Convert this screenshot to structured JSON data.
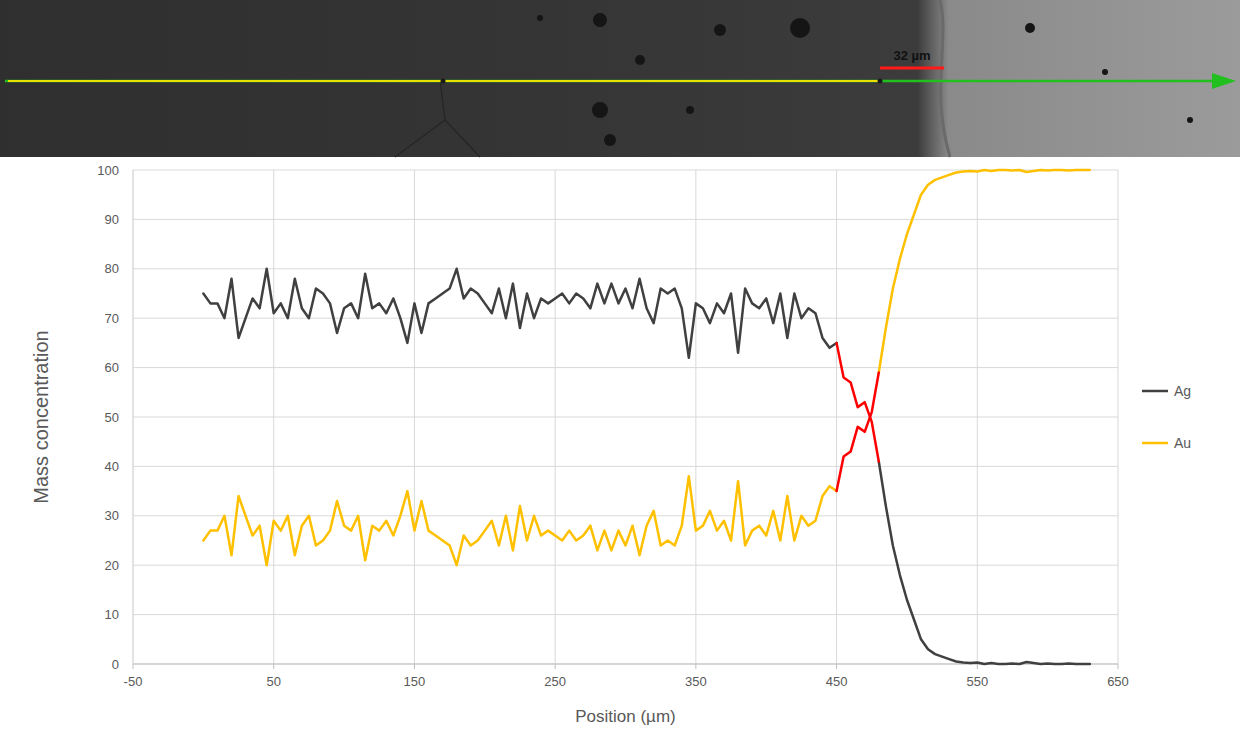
{
  "chart_data": {
    "type": "line",
    "x_label": "Position (µm)",
    "y_label": "Mass concentration",
    "annotations": [
      "32 µm"
    ],
    "xlim": [
      -50,
      650
    ],
    "xticks": [
      -50,
      50,
      150,
      250,
      350,
      450,
      550,
      650
    ],
    "ylim": [
      0,
      100
    ],
    "yticks": [
      0,
      10,
      20,
      30,
      40,
      50,
      60,
      70,
      80,
      90,
      100
    ],
    "grid": true,
    "legend": "right",
    "x": [
      0,
      5,
      10,
      15,
      20,
      25,
      30,
      35,
      40,
      45,
      50,
      55,
      60,
      65,
      70,
      75,
      80,
      85,
      90,
      95,
      100,
      105,
      110,
      115,
      120,
      125,
      130,
      135,
      140,
      145,
      150,
      155,
      160,
      165,
      170,
      175,
      180,
      185,
      190,
      195,
      200,
      205,
      210,
      215,
      220,
      225,
      230,
      235,
      240,
      245,
      250,
      255,
      260,
      265,
      270,
      275,
      280,
      285,
      290,
      295,
      300,
      305,
      310,
      315,
      320,
      325,
      330,
      335,
      340,
      345,
      350,
      355,
      360,
      365,
      370,
      375,
      380,
      385,
      390,
      395,
      400,
      405,
      410,
      415,
      420,
      425,
      430,
      435,
      440,
      445,
      450,
      455,
      460,
      465,
      470,
      475,
      480,
      485,
      490,
      495,
      500,
      505,
      510,
      515,
      520,
      525,
      530,
      535,
      540,
      545,
      550,
      555,
      560,
      565,
      570,
      575,
      580,
      585,
      590,
      595,
      600,
      605,
      610,
      615,
      620,
      625,
      630
    ],
    "series": [
      {
        "name": "Ag",
        "color": "#404040",
        "values": [
          75,
          73,
          73,
          70,
          78,
          66,
          70,
          74,
          72,
          80,
          71,
          73,
          70,
          78,
          72,
          70,
          76,
          75,
          73,
          67,
          72,
          73,
          70,
          79,
          72,
          73,
          71,
          74,
          70,
          65,
          73,
          67,
          73,
          74,
          75,
          76,
          80,
          74,
          76,
          75,
          73,
          71,
          76,
          70,
          77,
          68,
          75,
          70,
          74,
          73,
          74,
          75,
          73,
          75,
          74,
          72,
          77,
          73,
          77,
          73,
          76,
          72,
          78,
          72,
          69,
          76,
          75,
          76,
          72,
          62,
          73,
          72,
          69,
          73,
          71,
          75,
          63,
          76,
          73,
          72,
          74,
          69,
          75,
          66,
          75,
          70,
          72,
          71,
          66,
          64,
          65,
          null,
          null,
          null,
          null,
          null,
          41,
          32,
          24,
          18,
          13,
          9,
          5,
          3,
          2,
          1.5,
          1,
          0.5,
          0.3,
          0.2,
          0.3,
          0,
          0.2,
          0,
          0,
          0.1,
          0,
          0.4,
          0.2,
          0,
          0.1,
          0,
          0,
          0.1,
          0,
          0,
          0
        ]
      },
      {
        "name": "Au",
        "color": "#ffc000",
        "values": [
          25,
          27,
          27,
          30,
          22,
          34,
          30,
          26,
          28,
          20,
          29,
          27,
          30,
          22,
          28,
          30,
          24,
          25,
          27,
          33,
          28,
          27,
          30,
          21,
          28,
          27,
          29,
          26,
          30,
          35,
          27,
          33,
          27,
          26,
          25,
          24,
          20,
          26,
          24,
          25,
          27,
          29,
          24,
          30,
          23,
          32,
          25,
          30,
          26,
          27,
          26,
          25,
          27,
          25,
          26,
          28,
          23,
          27,
          23,
          27,
          24,
          28,
          22,
          28,
          31,
          24,
          25,
          24,
          28,
          38,
          27,
          28,
          31,
          27,
          29,
          25,
          37,
          24,
          27,
          28,
          26,
          31,
          25,
          34,
          25,
          30,
          28,
          29,
          34,
          36,
          35,
          null,
          null,
          null,
          null,
          null,
          59,
          68,
          76,
          82,
          87,
          91,
          95,
          97,
          98,
          98.5,
          99,
          99.5,
          99.7,
          99.8,
          99.7,
          100,
          99.8,
          100,
          100,
          99.9,
          100,
          99.6,
          99.8,
          100,
          99.9,
          100,
          100,
          99.9,
          100,
          100,
          100
        ]
      },
      {
        "color": "#ff0000",
        "values": [
          null,
          null,
          null,
          null,
          null,
          null,
          null,
          null,
          null,
          null,
          null,
          null,
          null,
          null,
          null,
          null,
          null,
          null,
          null,
          null,
          null,
          null,
          null,
          null,
          null,
          null,
          null,
          null,
          null,
          null,
          null,
          null,
          null,
          null,
          null,
          null,
          null,
          null,
          null,
          null,
          null,
          null,
          null,
          null,
          null,
          null,
          null,
          null,
          null,
          null,
          null,
          null,
          null,
          null,
          null,
          null,
          null,
          null,
          null,
          null,
          null,
          null,
          null,
          null,
          null,
          null,
          null,
          null,
          null,
          null,
          null,
          null,
          null,
          null,
          null,
          null,
          null,
          null,
          null,
          null,
          null,
          null,
          null,
          null,
          null,
          null,
          null,
          null,
          null,
          null,
          65,
          58,
          57,
          52,
          53,
          49,
          41,
          null,
          null,
          null,
          null,
          null,
          null,
          null,
          null,
          null,
          null,
          null,
          null,
          null,
          null,
          null,
          null,
          null,
          null,
          null,
          null,
          null,
          null,
          null,
          null,
          null,
          null,
          null,
          null,
          null,
          null
        ]
      },
      {
        "color": "#ff0000",
        "values": [
          null,
          null,
          null,
          null,
          null,
          null,
          null,
          null,
          null,
          null,
          null,
          null,
          null,
          null,
          null,
          null,
          null,
          null,
          null,
          null,
          null,
          null,
          null,
          null,
          null,
          null,
          null,
          null,
          null,
          null,
          null,
          null,
          null,
          null,
          null,
          null,
          null,
          null,
          null,
          null,
          null,
          null,
          null,
          null,
          null,
          null,
          null,
          null,
          null,
          null,
          null,
          null,
          null,
          null,
          null,
          null,
          null,
          null,
          null,
          null,
          null,
          null,
          null,
          null,
          null,
          null,
          null,
          null,
          null,
          null,
          null,
          null,
          null,
          null,
          null,
          null,
          null,
          null,
          null,
          null,
          null,
          null,
          null,
          null,
          null,
          null,
          null,
          null,
          null,
          null,
          35,
          42,
          43,
          48,
          47,
          51,
          59,
          null,
          null,
          null,
          null,
          null,
          null,
          null,
          null,
          null,
          null,
          null,
          null,
          null,
          null,
          null,
          null,
          null,
          null,
          null,
          null,
          null,
          null,
          null,
          null,
          null,
          null,
          null,
          null,
          null,
          null
        ]
      }
    ]
  }
}
